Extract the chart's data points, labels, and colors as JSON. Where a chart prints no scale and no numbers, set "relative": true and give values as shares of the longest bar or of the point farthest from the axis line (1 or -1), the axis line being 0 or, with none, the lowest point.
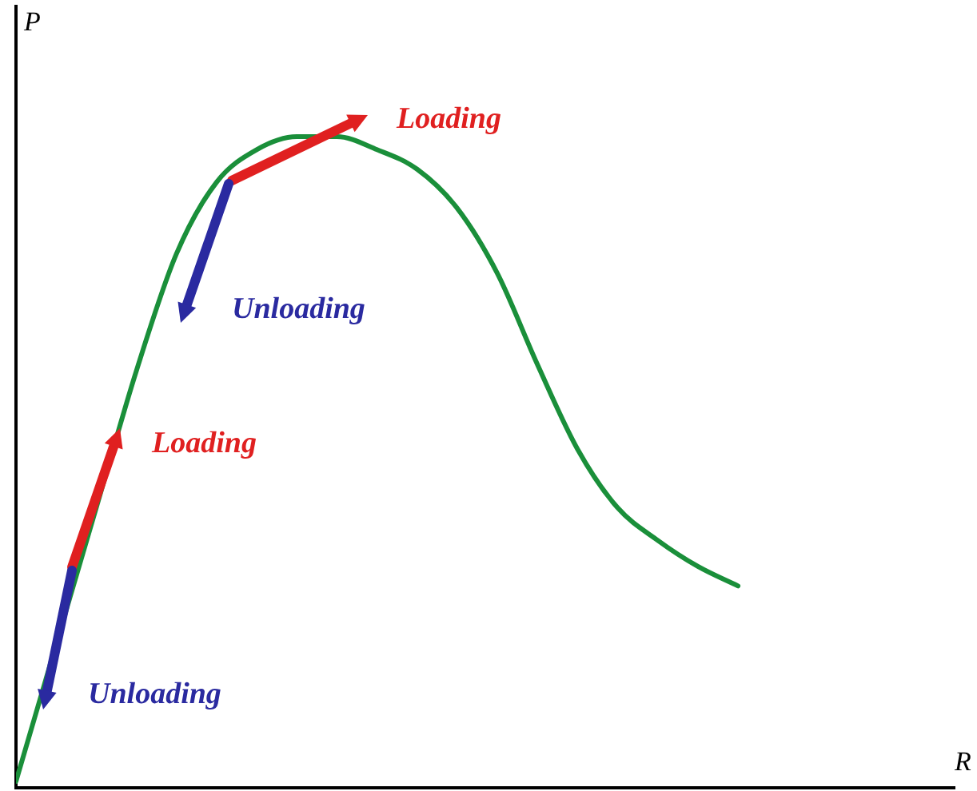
{
  "chart_data": {
    "type": "line",
    "relative": true,
    "ylabel": "P",
    "categories": [
      null,
      null,
      null,
      null,
      null,
      null,
      null,
      null,
      null,
      null,
      null,
      null,
      null,
      null,
      null,
      null,
      null,
      null,
      null
    ],
    "series": [
      {
        "color": "#1a8f3a",
        "values": [
          0.01,
          0.22,
          0.43,
          0.64,
          0.82,
          0.93,
          0.98,
          1,
          1,
          0.98,
          0.95,
          0.89,
          0.79,
          0.65,
          0.52,
          0.43,
          0.38,
          0.34,
          0.31
        ]
      }
    ],
    "annotations": [
      "Loading",
      "Unloading",
      "Loading",
      "Unloading",
      "R"
    ],
    "grid": false,
    "legend": false,
    "marker": "none",
    "line_style": "solid"
  }
}
